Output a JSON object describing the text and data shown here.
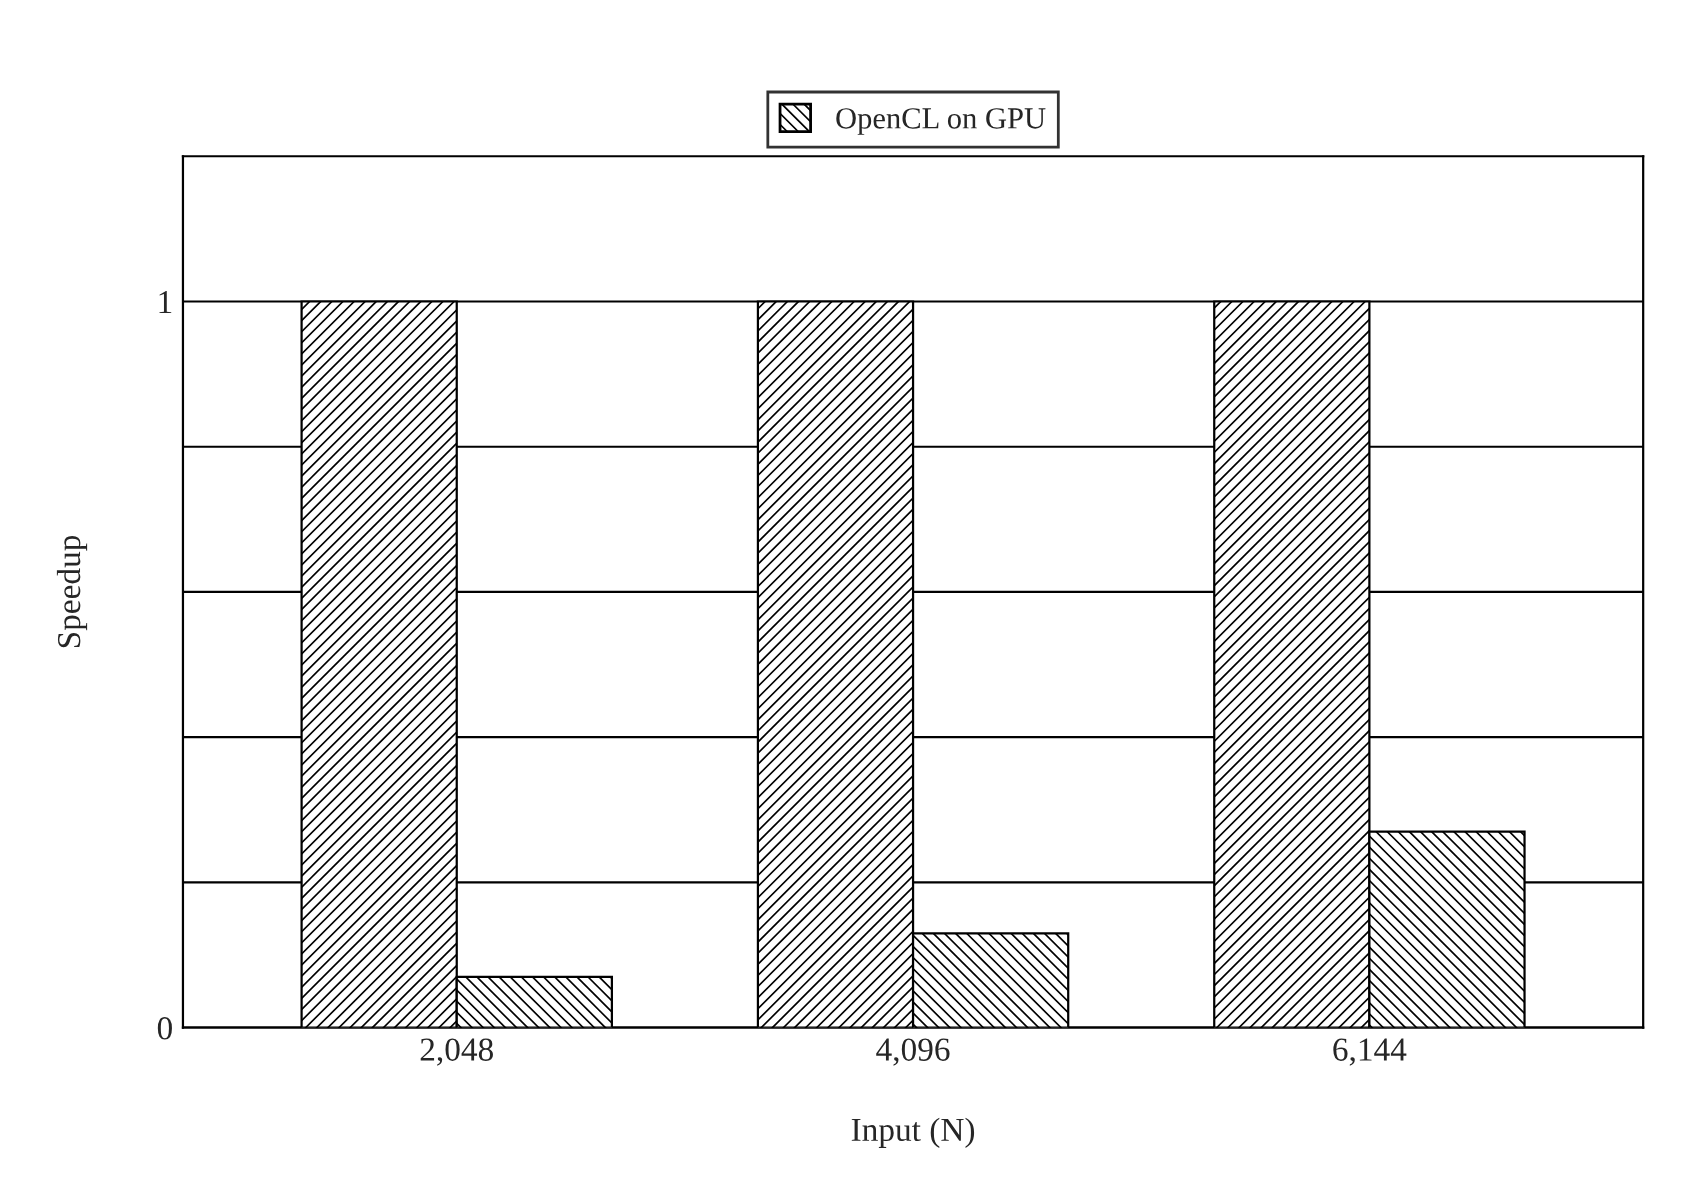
{
  "chart_data": {
    "type": "bar",
    "xlabel": "Input (N)",
    "ylabel": "Speedup",
    "categories": [
      "2,048",
      "4,096",
      "6,144"
    ],
    "series": [
      {
        "color": "#000000",
        "values": [
          1,
          1,
          1
        ]
      },
      {
        "name": "OpenCL on GPU",
        "color": "#000000",
        "values": [
          0.07,
          0.13,
          0.27
        ]
      }
    ],
    "ylim": [
      0,
      1.2
    ],
    "yticks": [
      0,
      {
        "value": 0.2,
        "label": null
      },
      {
        "value": 0.4,
        "label": null
      },
      {
        "value": 0.6,
        "label": null
      },
      {
        "value": 0.8,
        "label": null
      },
      1
    ],
    "grid": "y",
    "legend": "top"
  }
}
